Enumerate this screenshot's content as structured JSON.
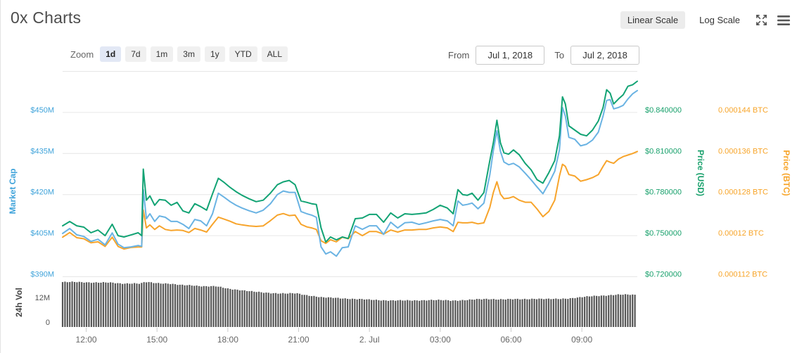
{
  "header": {
    "title": "0x Charts",
    "linear_scale_label": "Linear Scale",
    "log_scale_label": "Log Scale",
    "selected_scale": "Linear Scale",
    "icons": {
      "expand": "expand-arrows",
      "menu": "hamburger-menu"
    }
  },
  "toolbar": {
    "zoom_label": "Zoom",
    "ranges": [
      "1d",
      "7d",
      "1m",
      "3m",
      "1y",
      "YTD",
      "ALL"
    ],
    "selected_range": "1d",
    "from_label": "From",
    "from_value": "Jul 1, 2018",
    "to_label": "To",
    "to_value": "Jul 2, 2018"
  },
  "chart_data": {
    "type": "line",
    "title": "0x Charts",
    "x_unit": "hours since 2018-07-01 11:00",
    "x_domain": [
      0,
      24.35
    ],
    "x_ticks": [
      {
        "t": 1,
        "label": "12:00"
      },
      {
        "t": 4,
        "label": "15:00"
      },
      {
        "t": 7,
        "label": "18:00"
      },
      {
        "t": 10,
        "label": "21:00"
      },
      {
        "t": 13,
        "label": "2. Jul"
      },
      {
        "t": 16,
        "label": "03:00"
      },
      {
        "t": 19,
        "label": "06:00"
      },
      {
        "t": 22,
        "label": "09:00"
      }
    ],
    "grid": "horizontal-only",
    "axes": {
      "market_cap": {
        "title": "Market Cap",
        "side": "left",
        "color": "#3fa3da",
        "range": [
          390,
          465
        ],
        "tick_values": [
          450,
          435,
          420,
          405,
          390
        ],
        "tick_labels": [
          "$450M",
          "$435M",
          "$420M",
          "$405M",
          "$390M"
        ],
        "unit": "USD millions"
      },
      "price_usd": {
        "title": "Price (USD)",
        "side": "right",
        "color": "#17a06b",
        "range": [
          0.72,
          0.87
        ],
        "tick_values": [
          0.84,
          0.81,
          0.78,
          0.75,
          0.72
        ],
        "tick_labels": [
          "$0.840000",
          "$0.810000",
          "$0.780000",
          "$0.750000",
          "$0.720000"
        ],
        "unit": "USD"
      },
      "price_btc": {
        "title": "Price (BTC)",
        "side": "far-right",
        "color": "#f7a428",
        "range": [
          0.000112,
          0.000152
        ],
        "tick_values": [
          0.000144,
          0.000136,
          0.000128,
          0.00012,
          0.000112
        ],
        "tick_labels": [
          "0.000144 BTC",
          "0.000136 BTC",
          "0.000128 BTC",
          "0.00012 BTC",
          "0.000112 BTC"
        ],
        "unit": "BTC"
      },
      "volume": {
        "title": "24h Vol",
        "side": "left",
        "color": "#555555",
        "range": [
          0,
          24
        ],
        "tick_values": [
          12,
          0
        ],
        "tick_labels": [
          "12M",
          "0"
        ],
        "unit": "USD millions"
      }
    },
    "t": [
      0,
      0.3,
      0.6,
      0.9,
      1.2,
      1.5,
      1.8,
      2.1,
      2.35,
      2.6,
      2.9,
      3.2,
      3.35,
      3.42,
      3.55,
      3.7,
      3.9,
      4.1,
      4.35,
      4.6,
      4.85,
      5.1,
      5.35,
      5.6,
      5.85,
      6.1,
      6.35,
      6.6,
      6.85,
      7.1,
      7.35,
      7.6,
      7.9,
      8.2,
      8.5,
      8.8,
      9.1,
      9.35,
      9.6,
      9.85,
      10.1,
      10.35,
      10.55,
      10.75,
      10.95,
      11.15,
      11.35,
      11.6,
      11.85,
      12.1,
      12.4,
      12.7,
      13.0,
      13.3,
      13.6,
      13.9,
      14.2,
      14.5,
      14.8,
      15.1,
      15.4,
      15.7,
      16.0,
      16.3,
      16.55,
      16.75,
      16.95,
      17.15,
      17.35,
      17.6,
      17.85,
      18.1,
      18.25,
      18.4,
      18.55,
      18.7,
      18.9,
      19.1,
      19.35,
      19.6,
      19.85,
      20.1,
      20.35,
      20.6,
      20.85,
      21.05,
      21.18,
      21.3,
      21.45,
      21.7,
      21.95,
      22.2,
      22.45,
      22.7,
      22.9,
      23.05,
      23.2,
      23.35,
      23.55,
      23.75,
      23.95,
      24.15,
      24.35
    ],
    "series": [
      {
        "name": "Price (BTC)",
        "axis": "price_btc",
        "color": "#f7a42b",
        "values": [
          0.0001197,
          0.0001206,
          0.0001196,
          0.0001194,
          0.0001186,
          0.0001188,
          0.0001179,
          0.0001197,
          0.0001179,
          0.0001174,
          0.0001177,
          0.0001178,
          0.0001178,
          0.000125,
          0.0001215,
          0.0001221,
          0.0001212,
          0.0001219,
          0.0001212,
          0.000121,
          0.0001211,
          0.000121,
          0.0001206,
          0.0001214,
          0.0001211,
          0.0001207,
          0.0001222,
          0.0001236,
          0.0001232,
          0.0001228,
          0.0001223,
          0.0001221,
          0.0001219,
          0.0001218,
          0.0001219,
          0.0001229,
          0.000124,
          0.0001243,
          0.0001239,
          0.000124,
          0.0001222,
          0.0001217,
          0.0001215,
          0.0001212,
          0.000119,
          0.0001185,
          0.0001192,
          0.0001188,
          0.0001197,
          0.0001194,
          0.0001208,
          0.00012,
          0.0001208,
          0.0001208,
          0.0001203,
          0.0001211,
          0.0001207,
          0.0001211,
          0.0001211,
          0.0001212,
          0.0001212,
          0.0001215,
          0.0001217,
          0.0001215,
          0.0001208,
          0.0001226,
          0.0001225,
          0.0001225,
          0.0001226,
          0.0001223,
          0.0001225,
          0.0001255,
          0.0001284,
          0.0001305,
          0.0001281,
          0.0001272,
          0.0001273,
          0.0001276,
          0.0001269,
          0.0001265,
          0.0001265,
          0.0001252,
          0.0001237,
          0.0001247,
          0.0001269,
          0.0001316,
          0.0001339,
          0.0001335,
          0.0001319,
          0.0001316,
          0.0001306,
          0.0001309,
          0.0001313,
          0.0001319,
          0.0001335,
          0.0001346,
          0.0001343,
          0.0001341,
          0.0001349,
          0.0001354,
          0.0001357,
          0.000136,
          0.0001364
        ]
      },
      {
        "name": "Market Cap",
        "axis": "market_cap",
        "color": "#6ab3e3",
        "values": [
          405.8,
          407.6,
          405.3,
          404.7,
          402.9,
          403.7,
          401.6,
          406,
          401.9,
          400.6,
          400.9,
          401.4,
          401.1,
          421.8,
          411.2,
          413,
          410.2,
          412.2,
          411.7,
          410.2,
          410.2,
          409.1,
          407.6,
          410.9,
          410.4,
          408.6,
          413,
          420.5,
          419,
          417.4,
          416.1,
          415.1,
          414.1,
          413.3,
          414.3,
          416.6,
          420,
          421.3,
          420.8,
          420.8,
          413.8,
          413,
          412.5,
          411.7,
          400.9,
          398.3,
          399.1,
          397.5,
          400.6,
          400.9,
          408.6,
          407.3,
          408.6,
          408.6,
          405.5,
          409.9,
          407.8,
          409.7,
          409.9,
          409.1,
          409.7,
          410.4,
          410.9,
          410.4,
          408.6,
          417.7,
          416.1,
          416.4,
          416.9,
          414.8,
          416.9,
          427.2,
          436,
          443.3,
          435.8,
          431.9,
          430.9,
          431.4,
          430.1,
          427.8,
          425.4,
          422.8,
          420.3,
          424.1,
          428.5,
          436.3,
          451.8,
          448.7,
          440.9,
          440.2,
          437.8,
          438.4,
          439.9,
          442.8,
          448.7,
          454.4,
          454.7,
          451.3,
          451.8,
          452.6,
          454.9,
          456.8,
          458
        ]
      },
      {
        "name": "Price (USD)",
        "axis": "price_usd",
        "color": "#12a374",
        "values": [
          0.7572,
          0.7603,
          0.7572,
          0.7562,
          0.7521,
          0.7541,
          0.75,
          0.7583,
          0.75,
          0.749,
          0.7505,
          0.7521,
          0.75,
          0.7986,
          0.7759,
          0.779,
          0.7722,
          0.7764,
          0.7759,
          0.7722,
          0.7743,
          0.7681,
          0.7666,
          0.7733,
          0.7712,
          0.7686,
          0.7805,
          0.7919,
          0.7888,
          0.7852,
          0.7821,
          0.7795,
          0.7769,
          0.7748,
          0.7759,
          0.781,
          0.7872,
          0.7893,
          0.7903,
          0.7872,
          0.7753,
          0.7743,
          0.7733,
          0.7728,
          0.7557,
          0.7453,
          0.749,
          0.7469,
          0.749,
          0.7479,
          0.7624,
          0.7629,
          0.7655,
          0.7655,
          0.7598,
          0.7666,
          0.7629,
          0.766,
          0.7655,
          0.766,
          0.7666,
          0.7691,
          0.7722,
          0.7702,
          0.766,
          0.7836,
          0.78,
          0.7795,
          0.781,
          0.7759,
          0.7815,
          0.8048,
          0.8178,
          0.8343,
          0.8178,
          0.8105,
          0.8095,
          0.8126,
          0.809,
          0.8028,
          0.7981,
          0.7909,
          0.7883,
          0.796,
          0.8048,
          0.8229,
          0.8514,
          0.8462,
          0.8302,
          0.8271,
          0.824,
          0.8229,
          0.8271,
          0.8338,
          0.8436,
          0.8566,
          0.854,
          0.8462,
          0.8498,
          0.8529,
          0.8591,
          0.8602,
          0.8628
        ]
      }
    ],
    "volume_profile": {
      "name": "24h Vol",
      "color": "#565656",
      "unit": "USD millions",
      "t": [
        0,
        0.5,
        1,
        1.5,
        2,
        2.5,
        3,
        3.3,
        3.5,
        4,
        4.5,
        5,
        5.5,
        6,
        6.5,
        7,
        7.5,
        8,
        8.5,
        9,
        9.5,
        9.9,
        10.3,
        10.7,
        11,
        11.5,
        12,
        12.5,
        13,
        13.5,
        14,
        14.5,
        15,
        15.5,
        16,
        16.5,
        17,
        17.5,
        18,
        18.5,
        19,
        19.5,
        20,
        20.5,
        21,
        21.5,
        22,
        22.5,
        23,
        23.5,
        24,
        24.3
      ],
      "values": [
        21.9,
        21.9,
        21.8,
        21.7,
        21.6,
        21.2,
        21.3,
        21.1,
        21.9,
        21.4,
        21.2,
        20.4,
        20.3,
        19.9,
        19.8,
        18.7,
        18.1,
        17.3,
        16.8,
        16.5,
        16.3,
        16.4,
        15.6,
        15.0,
        14.4,
        14.2,
        13.9,
        13.6,
        13.3,
        13.1,
        12.9,
        12.9,
        13.0,
        13.1,
        13.1,
        12.9,
        13.1,
        13.4,
        13.7,
        13.5,
        13.5,
        13.6,
        13.8,
        13.6,
        13.7,
        14.0,
        14.5,
        15.1,
        15.4,
        15.7,
        15.8,
        15.7
      ]
    }
  }
}
